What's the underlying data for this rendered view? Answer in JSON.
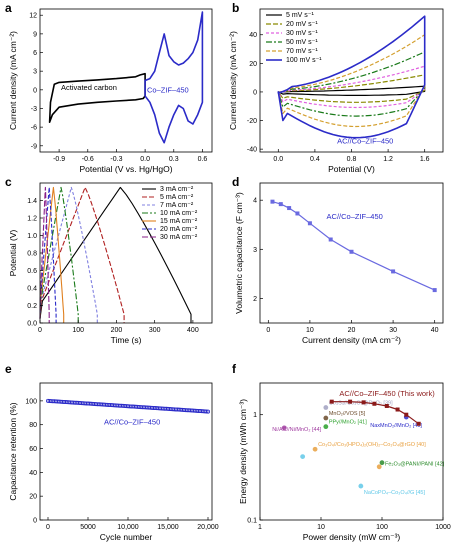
{
  "chart_data": [
    {
      "panel": "a",
      "type": "line",
      "xlabel": "Potential (V vs. Hg/HgO)",
      "ylabel": "Current density (mA cm⁻²)",
      "xlim": [
        -1.1,
        0.7
      ],
      "ylim": [
        -10,
        13
      ],
      "xticks": [
        "-0.9",
        "-0.6",
        "-0.3",
        "0.0",
        "0.3",
        "0.6"
      ],
      "yticks": [
        "12",
        "9",
        "6",
        "3",
        "0",
        "-3",
        "-6",
        "-9"
      ],
      "annotations": [
        "Activated carbon",
        "Co–ZIF–450"
      ],
      "series": [
        {
          "color": "#000000",
          "x": [
            -1.0,
            -0.99,
            -0.95,
            -0.9,
            -0.7,
            -0.5,
            -0.3,
            -0.1,
            -0.05,
            0.0,
            0.0,
            -0.02,
            -0.1,
            -0.3,
            -0.5,
            -0.7,
            -0.9,
            -0.97,
            -1.0
          ],
          "y": [
            -5.2,
            -2.0,
            0.9,
            1.2,
            1.4,
            1.6,
            1.8,
            2.1,
            2.4,
            2.6,
            -1.0,
            -1.4,
            -1.6,
            -1.8,
            -2.0,
            -2.3,
            -2.8,
            -4.0,
            -5.2
          ]
        },
        {
          "color": "#2b2bc8",
          "x": [
            0.0,
            0.05,
            0.1,
            0.15,
            0.2,
            0.25,
            0.3,
            0.35,
            0.4,
            0.45,
            0.5,
            0.55,
            0.6,
            0.6,
            0.55,
            0.5,
            0.45,
            0.4,
            0.35,
            0.3,
            0.25,
            0.2,
            0.15,
            0.1,
            0.05,
            0.0
          ],
          "y": [
            1.5,
            1.8,
            3.0,
            6.0,
            9.0,
            5.5,
            4.5,
            4.0,
            4.3,
            5.0,
            6.0,
            8.0,
            12.5,
            -2.0,
            -4.0,
            -5.5,
            -5.0,
            -3.0,
            -2.5,
            -4.0,
            -6.0,
            -8.5,
            -7.0,
            -4.0,
            -2.0,
            -1.0
          ]
        }
      ]
    },
    {
      "panel": "b",
      "type": "line",
      "xlabel": "Potential (V)",
      "ylabel": "Current density (mA cm⁻²)",
      "xlim": [
        -0.2,
        1.8
      ],
      "ylim": [
        -42,
        58
      ],
      "xticks": [
        "0.0",
        "0.4",
        "0.8",
        "1.2",
        "1.6"
      ],
      "yticks": [
        "40",
        "20",
        "0",
        "-20",
        "-40"
      ],
      "legend_position": "top-left",
      "annotations": [
        "AC//Co–ZIF–450"
      ],
      "series": [
        {
          "name": "5 mV s⁻¹",
          "color": "#000000",
          "top_end": 4,
          "bottom_end": -2
        },
        {
          "name": "20 mV s⁻¹",
          "color": "#8a8a00",
          "top_end": 12,
          "bottom_end": -8
        },
        {
          "name": "30 mV s⁻¹",
          "color": "#e060e0",
          "top_end": 18,
          "bottom_end": -12
        },
        {
          "name": "50 mV s⁻¹",
          "color": "#1a7a1a",
          "top_end": 28,
          "bottom_end": -18
        },
        {
          "name": "70 mV s⁻¹",
          "color": "#d4a030",
          "top_end": 40,
          "bottom_end": -24
        },
        {
          "name": "100 mV s⁻¹",
          "color": "#2b2bc8",
          "top_end": 53,
          "bottom_end": -32
        }
      ]
    },
    {
      "panel": "c",
      "type": "line",
      "xlabel": "Time (s)",
      "ylabel": "Potential (V)",
      "xlim": [
        0,
        450
      ],
      "ylim": [
        0,
        1.6
      ],
      "xticks": [
        "0",
        "100",
        "200",
        "300",
        "400"
      ],
      "yticks": [
        "0.0",
        "0.2",
        "0.4",
        "0.6",
        "0.8",
        "1.0",
        "1.2",
        "1.4"
      ],
      "legend_position": "top-right",
      "series": [
        {
          "name": "3 mA cm⁻²",
          "color": "#000000",
          "peak_t": 210,
          "end_t": 395
        },
        {
          "name": "5 mA cm⁻²",
          "color": "#b02020",
          "peak_t": 118,
          "end_t": 220
        },
        {
          "name": "7 mA cm⁻²",
          "color": "#8080e0",
          "peak_t": 82,
          "end_t": 150
        },
        {
          "name": "10 mA cm⁻²",
          "color": "#1a7a1a",
          "peak_t": 55,
          "end_t": 100
        },
        {
          "name": "15 mA cm⁻²",
          "color": "#e08020",
          "peak_t": 35,
          "end_t": 62
        },
        {
          "name": "20 mA cm⁻²",
          "color": "#2b2bc8",
          "peak_t": 24,
          "end_t": 42
        },
        {
          "name": "30 mA cm⁻²",
          "color": "#8a208a",
          "peak_t": 14,
          "end_t": 24
        }
      ]
    },
    {
      "panel": "d",
      "type": "line",
      "xlabel": "Current density (mA cm⁻²)",
      "ylabel": "Volumetric capacitance (F cm⁻³)",
      "xlim": [
        -2,
        42
      ],
      "ylim": [
        1.5,
        4.35
      ],
      "xticks": [
        "0",
        "10",
        "20",
        "30",
        "40"
      ],
      "yticks": [
        "4",
        "3",
        "2"
      ],
      "annotations": [
        "AC//Co–ZIF–450"
      ],
      "x": [
        1,
        3,
        5,
        7,
        10,
        15,
        20,
        30,
        40
      ],
      "y": [
        3.97,
        3.92,
        3.84,
        3.73,
        3.53,
        3.2,
        2.95,
        2.55,
        2.17
      ],
      "color": "#6a6ae0"
    },
    {
      "panel": "e",
      "type": "scatter",
      "xlabel": "Cycle number",
      "ylabel": "Capacitance retention (%)",
      "xlim": [
        -1000,
        20500
      ],
      "ylim": [
        0,
        115
      ],
      "xticks": [
        "0",
        "5000",
        "10,000",
        "15,000",
        "20,000"
      ],
      "yticks": [
        "100",
        "80",
        "60",
        "40",
        "20",
        "0"
      ],
      "annotations": [
        "AC//Co–ZIF–450"
      ],
      "x_start": 0,
      "x_end": 20000,
      "y_start": 100,
      "y_end": 91,
      "color": "#2b2bc8"
    },
    {
      "panel": "f",
      "type": "scatter",
      "xlabel": "Power density (mW cm⁻³)",
      "ylabel": "Energy density (mWh cm⁻³)",
      "xscale": "log",
      "yscale": "log",
      "xlim": [
        1,
        1000
      ],
      "ylim": [
        0.1,
        2
      ],
      "xticks": [
        "1",
        "10",
        "100",
        "1000"
      ],
      "yticks": [
        "1",
        "0.1"
      ],
      "this_work": {
        "label": "AC//Co–ZIF–450 (This work)",
        "x": [
          15,
          30,
          50,
          75,
          120,
          180,
          250,
          400
        ],
        "y": [
          1.33,
          1.33,
          1.31,
          1.27,
          1.21,
          1.12,
          1.0,
          0.82
        ],
        "color": "#8b1a1a"
      },
      "references": [
        {
          "label": "Co₃S₄//Co₃O₄@RuO₂",
          "ref": "[39]",
          "x": 12,
          "y": 1.17,
          "color": "#a0a0c0"
        },
        {
          "label": "MnO₂//VOS",
          "ref": "[5]",
          "x": 12,
          "y": 0.93,
          "color": "#6a4a2a"
        },
        {
          "label": "PPy//MnO₂",
          "ref": "[41]",
          "x": 12,
          "y": 0.77,
          "color": "#2aa02a"
        },
        {
          "label": "Ni/AC//Ni/MnO₂",
          "ref": "[44]",
          "x": 2.5,
          "y": 0.75,
          "color": "#a03ca0"
        },
        {
          "label": "NaxMnO₂//MnO₂",
          "ref": "[43]",
          "x": 250,
          "y": 0.95,
          "color": "#2b2bc8"
        },
        {
          "label": "Co₃O₄//Co₃(HPO₄)₂(OH)₂–Co₃O₄@rGO",
          "ref": "[40]",
          "x": 8,
          "y": 0.47,
          "color": "#e8a040"
        },
        {
          "label": "",
          "ref": "",
          "x": 5,
          "y": 0.4,
          "color": "#60c8e8"
        },
        {
          "label": "Fe₂O₃@PANI//PANI",
          "ref": "[42]",
          "x": 100,
          "y": 0.35,
          "color": "#2a8a2a"
        },
        {
          "label": "",
          "ref": "",
          "x": 90,
          "y": 0.32,
          "color": "#e8a040"
        },
        {
          "label": "NaCoPO₄–Co₃O₄//G",
          "ref": "[45]",
          "x": 45,
          "y": 0.21,
          "color": "#60c8e8"
        }
      ]
    }
  ]
}
